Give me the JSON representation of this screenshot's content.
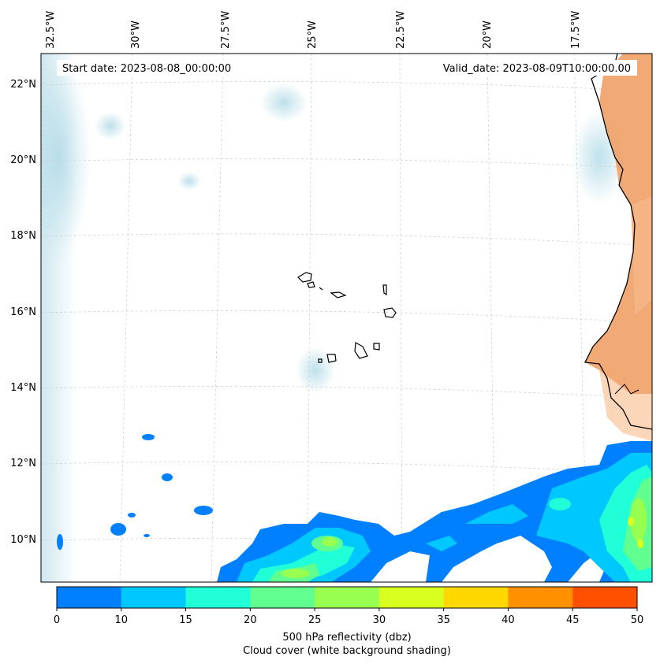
{
  "header": {
    "start_date": "Start date: 2023-08-08_00:00:00",
    "valid_date": "Valid_date: 2023-08-09T10:00:00.00"
  },
  "map": {
    "lon_labels": [
      "32.5°W",
      "30°W",
      "27.5°W",
      "25°W",
      "22.5°W",
      "20°W",
      "17.5°W"
    ],
    "lat_labels": [
      "22°N",
      "20°N",
      "18°N",
      "16°N",
      "14°N",
      "12°N",
      "10°N"
    ]
  },
  "colorbar": {
    "ticks": [
      "0",
      "10",
      "15",
      "20",
      "25",
      "30",
      "35",
      "40",
      "45",
      "50"
    ],
    "colors": [
      "#0080ff",
      "#00c8ff",
      "#20ffd8",
      "#60ff90",
      "#98ff50",
      "#d8ff20",
      "#ffd800",
      "#ff9000",
      "#ff5000"
    ],
    "label_line1": "500 hPa reflectivity (dbz)",
    "label_line2": "Cloud cover (white background shading)"
  }
}
